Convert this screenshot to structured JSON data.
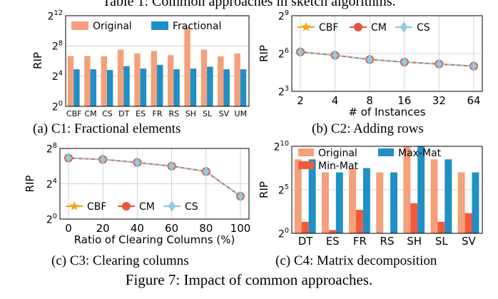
{
  "header_caption": "Table 1: Common approaches in sketch algorithms.",
  "figure_caption": "Figure 7: Impact of common approaches.",
  "colors": {
    "original": "#f4a07a",
    "fractional": "#1f8fc6",
    "maxmat": "#1f8fc6",
    "minmat": "#f15a3b",
    "cbf": "#f7a21b",
    "cm": "#e8543a",
    "cs": "#8ecbe5"
  },
  "chart_data": [
    {
      "id": "c1",
      "type": "bar",
      "caption": "(a) C1: Fractional elements",
      "ylabel": "RIP",
      "yscale": "log2",
      "ylim": [
        1,
        4096
      ],
      "yticks": [
        {
          "v": 1,
          "b": "2",
          "e": "0"
        },
        {
          "v": 16,
          "b": "2",
          "e": "4"
        },
        {
          "v": 256,
          "b": "2",
          "e": "8"
        },
        {
          "v": 4096,
          "b": "2",
          "e": "12"
        }
      ],
      "categories": [
        "CBF",
        "CM",
        "CS",
        "DT",
        "ES",
        "FR",
        "RS",
        "SH",
        "SL",
        "SV",
        "UM"
      ],
      "series": [
        {
          "name": "Original",
          "color_key": "original",
          "values": [
            101,
            101,
            98,
            181,
            128,
            160,
            110,
            1450,
            181,
            98,
            128
          ]
        },
        {
          "name": "Fractional",
          "color_key": "fractional",
          "values": [
            30,
            30,
            28,
            40,
            32,
            45,
            30,
            32,
            38,
            30,
            30
          ]
        }
      ],
      "legend": "top"
    },
    {
      "id": "c2",
      "type": "line",
      "caption": "(b) C2: Adding rows",
      "ylabel": "RIP",
      "xlabel": "# of Instances",
      "yscale": "log2",
      "ylim": [
        8,
        512
      ],
      "yticks": [
        {
          "v": 8,
          "b": "2",
          "e": "3"
        },
        {
          "v": 64,
          "b": "2",
          "e": "6"
        },
        {
          "v": 512,
          "b": "2",
          "e": "9"
        }
      ],
      "x": [
        "2",
        "4",
        "8",
        "16",
        "32",
        "64"
      ],
      "series": [
        {
          "name": "CBF",
          "marker": "star",
          "color_key": "cbf",
          "values": [
            70,
            58,
            46,
            40,
            36,
            32
          ]
        },
        {
          "name": "CM",
          "marker": "circle",
          "color_key": "cm",
          "values": [
            70,
            58,
            46,
            40,
            36,
            32
          ]
        },
        {
          "name": "CS",
          "marker": "diamond",
          "color_key": "cs",
          "values": [
            70,
            58,
            46,
            40,
            36,
            32
          ]
        }
      ],
      "legend": "top-left"
    },
    {
      "id": "c3",
      "type": "line",
      "caption": "(c) C3: Clearing columns",
      "ylabel": "RIP",
      "xlabel": "Ratio of Clearing Columns (%)",
      "yscale": "log2",
      "ylim": [
        1,
        256
      ],
      "yticks": [
        {
          "v": 1,
          "b": "2",
          "e": "0"
        },
        {
          "v": 16,
          "b": "2",
          "e": "4"
        },
        {
          "v": 256,
          "b": "2",
          "e": "8"
        }
      ],
      "x": [
        "0",
        "20",
        "40",
        "60",
        "80",
        "100"
      ],
      "series": [
        {
          "name": "CBF",
          "marker": "star",
          "color_key": "cbf",
          "values": [
            120,
            108,
            85,
            64,
            42,
            6
          ]
        },
        {
          "name": "CM",
          "marker": "circle",
          "color_key": "cm",
          "values": [
            120,
            108,
            85,
            64,
            42,
            6
          ]
        },
        {
          "name": "CS",
          "marker": "diamond",
          "color_key": "cs",
          "values": [
            120,
            108,
            85,
            64,
            42,
            6
          ]
        }
      ],
      "legend": "bottom-left"
    },
    {
      "id": "c4",
      "type": "bar",
      "caption": "(c) C4: Matrix decomposition",
      "ylabel": "RIP",
      "yscale": "log2",
      "ylim": [
        1,
        1024
      ],
      "yticks": [
        {
          "v": 1,
          "b": "2",
          "e": "0"
        },
        {
          "v": 32,
          "b": "2",
          "e": "5"
        },
        {
          "v": 1024,
          "b": "2",
          "e": "10"
        }
      ],
      "categories": [
        "DT",
        "ES",
        "FR",
        "RS",
        "SH",
        "SL",
        "SV"
      ],
      "series": [
        {
          "name": "Original",
          "color_key": "original",
          "values": [
            362,
            128,
            181,
            128,
            1024,
            362,
            128
          ]
        },
        {
          "name": "Min-Mat",
          "color_key": "minmat",
          "values": [
            2.5,
            1.3,
            6.5,
            1,
            11,
            2.5,
            5
          ]
        },
        {
          "name": "Max-Mat",
          "color_key": "maxmat",
          "values": [
            362,
            128,
            181,
            128,
            1024,
            362,
            128
          ]
        }
      ],
      "legend": "top"
    }
  ]
}
